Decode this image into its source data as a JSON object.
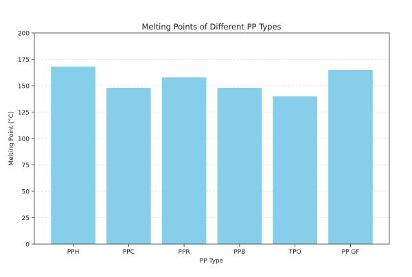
{
  "chart_data": {
    "type": "bar",
    "title": "Melting Points of Different PP Types",
    "xlabel": "PP Type",
    "ylabel": "Melting Point (°C)",
    "categories": [
      "PPH",
      "PPC",
      "PPR",
      "PPB",
      "TPO",
      "PP GF"
    ],
    "values": [
      168,
      148,
      158,
      148,
      140,
      165
    ],
    "ylim": [
      0,
      200
    ],
    "yticks": [
      0,
      25,
      50,
      75,
      100,
      125,
      150,
      175,
      200
    ],
    "grid": "horizontal dashed",
    "bar_color": "#87ceeb"
  }
}
